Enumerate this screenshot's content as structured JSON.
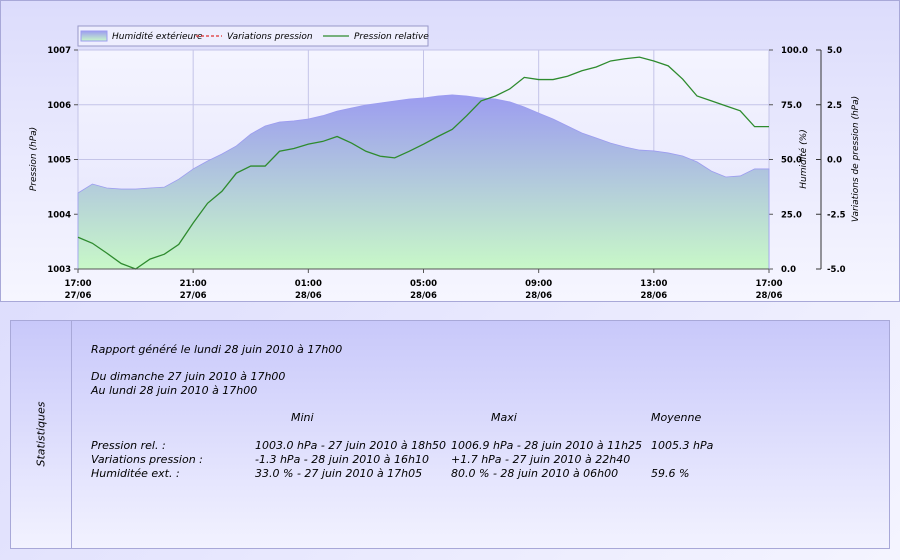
{
  "chart_data": {
    "type": "line",
    "x": [
      "27/06 17:00",
      "27/06 17:30",
      "27/06 18:00",
      "27/06 18:30",
      "27/06 19:00",
      "27/06 19:30",
      "27/06 20:00",
      "27/06 20:30",
      "27/06 21:00",
      "27/06 21:30",
      "27/06 22:00",
      "27/06 22:30",
      "27/06 23:00",
      "27/06 23:30",
      "28/06 00:00",
      "28/06 00:30",
      "28/06 01:00",
      "28/06 01:30",
      "28/06 02:00",
      "28/06 02:30",
      "28/06 03:00",
      "28/06 03:30",
      "28/06 04:00",
      "28/06 04:30",
      "28/06 05:00",
      "28/06 05:30",
      "28/06 06:00",
      "28/06 06:30",
      "28/06 07:00",
      "28/06 07:30",
      "28/06 08:00",
      "28/06 08:30",
      "28/06 09:00",
      "28/06 09:30",
      "28/06 10:00",
      "28/06 10:30",
      "28/06 11:00",
      "28/06 11:30",
      "28/06 12:00",
      "28/06 12:30",
      "28/06 13:00",
      "28/06 13:30",
      "28/06 14:00",
      "28/06 14:30",
      "28/06 15:00",
      "28/06 15:30",
      "28/06 16:00",
      "28/06 16:30",
      "28/06 17:00"
    ],
    "xticks": [
      {
        "time": "17:00",
        "date": "27/06"
      },
      {
        "time": "21:00",
        "date": "27/06"
      },
      {
        "time": "01:00",
        "date": "28/06"
      },
      {
        "time": "05:00",
        "date": "28/06"
      },
      {
        "time": "09:00",
        "date": "28/06"
      },
      {
        "time": "13:00",
        "date": "28/06"
      },
      {
        "time": "17:00",
        "date": "28/06"
      }
    ],
    "ylabel": "Pression (hPa)",
    "ylim": [
      1003,
      1007
    ],
    "yticks": [
      1003,
      1004,
      1005,
      1006,
      1007
    ],
    "y2label": "Humidité (%)",
    "y2lim": [
      0,
      100
    ],
    "y2ticks": [
      {
        "value": 0,
        "label": "0.0"
      },
      {
        "value": 25,
        "label": "25.0"
      },
      {
        "value": 50,
        "label": "50.0"
      },
      {
        "value": 75,
        "label": "75.0"
      },
      {
        "value": 100,
        "label": "100.0"
      }
    ],
    "y3label": "Variations de pression (hPa)",
    "y3lim": [
      -5,
      5
    ],
    "y3ticks": [
      {
        "value": -5,
        "label": "-5.0"
      },
      -2.5,
      {
        "value": 0,
        "label": "0.0"
      },
      2.5,
      {
        "value": 5,
        "label": "5.0"
      }
    ],
    "grid": true,
    "series": [
      {
        "name": "Humidité extérieure",
        "kind": "area",
        "axis": "y2",
        "color": "#9c9cf0",
        "gradient_to": "#c8f8c8",
        "values": [
          34.7,
          38.8,
          37,
          36.5,
          36.5,
          37,
          37.4,
          41,
          45.7,
          49.3,
          52.5,
          56.2,
          61.6,
          65.3,
          67.1,
          67.6,
          68.5,
          70,
          72.1,
          73.5,
          74.9,
          75.8,
          76.7,
          77.6,
          78.1,
          79,
          79.5,
          79,
          78.1,
          77.6,
          76.3,
          74,
          71.2,
          68.5,
          65.3,
          62.1,
          59.8,
          57.5,
          55.7,
          54.3,
          53.9,
          53,
          51.6,
          48.9,
          44.7,
          42,
          42.5,
          45.7,
          45.7
        ]
      },
      {
        "name": "Variations pression",
        "kind": "dashed",
        "axis": "y3",
        "color": "#e03030",
        "values": [
          null,
          null,
          null,
          null,
          null,
          null,
          null,
          null,
          null,
          null,
          null,
          null,
          null,
          null,
          null,
          null,
          null,
          null,
          null,
          null,
          null,
          null,
          null,
          null,
          null,
          null,
          null,
          null,
          null,
          null,
          null,
          null,
          null,
          null,
          null,
          null,
          null,
          null,
          null,
          null,
          null,
          null,
          null,
          null,
          null,
          null,
          null,
          null,
          null
        ]
      },
      {
        "name": "Pression relative",
        "kind": "step",
        "axis": "y",
        "color": "#2e8b2e",
        "values": [
          1003.58,
          1003.47,
          1003.29,
          1003.1,
          1003.0,
          1003.18,
          1003.27,
          1003.45,
          1003.84,
          1004.2,
          1004.42,
          1004.75,
          1004.88,
          1004.88,
          1005.15,
          1005.2,
          1005.28,
          1005.33,
          1005.42,
          1005.3,
          1005.15,
          1005.06,
          1005.03,
          1005.15,
          1005.28,
          1005.42,
          1005.55,
          1005.8,
          1006.07,
          1006.16,
          1006.29,
          1006.5,
          1006.46,
          1006.46,
          1006.52,
          1006.62,
          1006.69,
          1006.8,
          1006.84,
          1006.87,
          1006.8,
          1006.71,
          1006.47,
          1006.16,
          1006.07,
          1005.98,
          1005.89,
          1005.6,
          1005.6
        ]
      }
    ]
  },
  "stats": {
    "side_title": "Statistiques",
    "generated": "Rapport généré le lundi 28 juin 2010 à 17h00",
    "from": "Du dimanche 27 juin 2010 à 17h00",
    "to": "Au lundi 28 juin 2010 à 17h00",
    "headers": [
      "Mini",
      "Maxi",
      "Moyenne"
    ],
    "rows": [
      [
        "Pression rel. :",
        "1003.0 hPa - 27 juin 2010 à 18h50",
        "1006.9 hPa - 28 juin 2010 à 11h25",
        "1005.3 hPa"
      ],
      [
        "Variations pression :",
        "-1.3 hPa - 28 juin 2010 à 16h10",
        "+1.7 hPa - 27 juin 2010 à 22h40"
      ],
      [
        "Humiditée ext. :",
        "33.0 % - 27 juin 2010 à 17h05",
        "80.0 % - 28 juin 2010 à 06h00",
        "59.6 %"
      ]
    ]
  }
}
